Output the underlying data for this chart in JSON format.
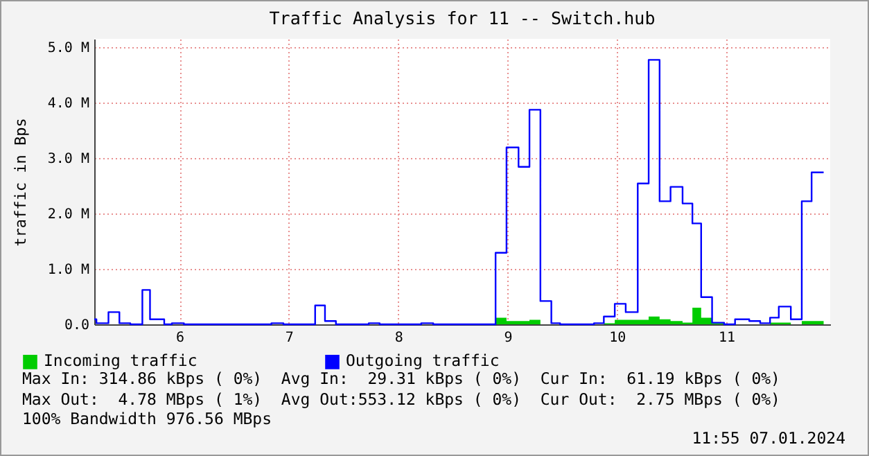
{
  "chart_data": {
    "type": "step",
    "title": "Traffic Analysis for 11 -- Switch.hub",
    "ylabel": "traffic in Bps",
    "xlim": [
      5.22,
      11.95
    ],
    "ylim": [
      0,
      5.15
    ],
    "xticks": [
      6,
      7,
      8,
      9,
      10,
      11
    ],
    "yticks": [
      {
        "value": 0,
        "label": "0.0"
      },
      {
        "value": 1,
        "label": "1.0 M"
      },
      {
        "value": 2,
        "label": "2.0 M"
      },
      {
        "value": 3,
        "label": "3.0 M"
      },
      {
        "value": 4,
        "label": "4.0 M"
      },
      {
        "value": 5,
        "label": "5.0 M"
      }
    ],
    "grid": true,
    "legend": "bottom left",
    "series": [
      {
        "name": "Incoming traffic",
        "color": "#00cc00",
        "type": "area",
        "x": [
          5.22,
          8.89,
          8.99,
          9.2,
          9.3,
          9.88,
          9.98,
          10.29,
          10.39,
          10.49,
          10.6,
          10.69,
          10.77,
          10.87,
          10.98,
          11.4,
          11.59,
          11.69,
          11.89
        ],
        "values": [
          0,
          0.12,
          0.06,
          0.08,
          0,
          0.02,
          0.08,
          0.14,
          0.09,
          0.06,
          0.03,
          0.3,
          0.12,
          0.02,
          0,
          0.03,
          0,
          0.06,
          0.06
        ]
      },
      {
        "name": "Outgoing traffic",
        "color": "#0000ff",
        "x": [
          5.22,
          5.24,
          5.35,
          5.45,
          5.55,
          5.66,
          5.73,
          5.86,
          5.93,
          6.04,
          6.84,
          6.95,
          7.24,
          7.33,
          7.43,
          7.73,
          7.83,
          8.21,
          8.32,
          8.89,
          8.99,
          9.1,
          9.2,
          9.3,
          9.4,
          9.48,
          9.79,
          9.88,
          9.98,
          10.08,
          10.19,
          10.29,
          10.39,
          10.49,
          10.6,
          10.69,
          10.77,
          10.87,
          10.98,
          11.08,
          11.21,
          11.31,
          11.4,
          11.48,
          11.59,
          11.69,
          11.78,
          11.89
        ],
        "values": [
          0.09,
          0.02,
          0.22,
          0.02,
          0,
          0.62,
          0.09,
          0,
          0.02,
          0,
          0.02,
          0,
          0.34,
          0.06,
          0,
          0.02,
          0,
          0.02,
          0,
          1.29,
          3.19,
          2.84,
          3.87,
          0.42,
          0.02,
          0,
          0.02,
          0.14,
          0.37,
          0.22,
          2.54,
          4.77,
          2.22,
          2.48,
          2.18,
          1.82,
          0.49,
          0.03,
          0,
          0.09,
          0.06,
          0.02,
          0.12,
          0.32,
          0.09,
          2.22,
          2.74,
          2.74
        ]
      }
    ],
    "annotations": [
      "Max In: 314.86 kBps ( 0%)  Avg In:  29.31 kBps ( 0%)  Cur In:  61.19 kBps ( 0%)",
      "Max Out:  4.78 MBps ( 1%)  Avg Out:553.12 kBps ( 0%)  Cur Out:  2.75 MBps ( 0%)",
      "100% Bandwidth 976.56 MBps",
      {
        "text": "11:55 07.01.2024"
      }
    ]
  }
}
